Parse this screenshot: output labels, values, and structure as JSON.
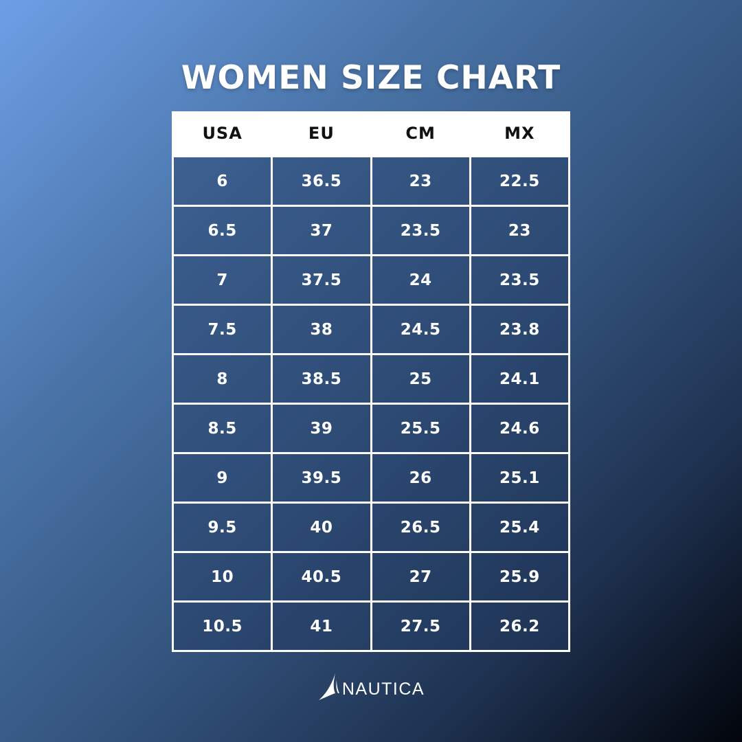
{
  "title": "WOMEN SIZE CHART",
  "table": {
    "headers": [
      "USA",
      "EU",
      "CM",
      "MX"
    ],
    "rows": [
      [
        "6",
        "36.5",
        "23",
        "22.5"
      ],
      [
        "6.5",
        "37",
        "23.5",
        "23"
      ],
      [
        "7",
        "37.5",
        "24",
        "23.5"
      ],
      [
        "7.5",
        "38",
        "24.5",
        "23.8"
      ],
      [
        "8",
        "38.5",
        "25",
        "24.1"
      ],
      [
        "8.5",
        "39",
        "25.5",
        "24.6"
      ],
      [
        "9",
        "39.5",
        "26",
        "25.1"
      ],
      [
        "9.5",
        "40",
        "26.5",
        "25.4"
      ],
      [
        "10",
        "40.5",
        "27",
        "25.9"
      ],
      [
        "10.5",
        "41",
        "27.5",
        "26.2"
      ]
    ]
  },
  "brand": {
    "name": "NAUTICA",
    "logo_icon": "sail-icon"
  },
  "colors": {
    "background_top": "#6e9fe6",
    "background_bottom": "#02050b",
    "text": "#ffffff",
    "header_bg": "#ffffff",
    "header_text": "#111111"
  }
}
